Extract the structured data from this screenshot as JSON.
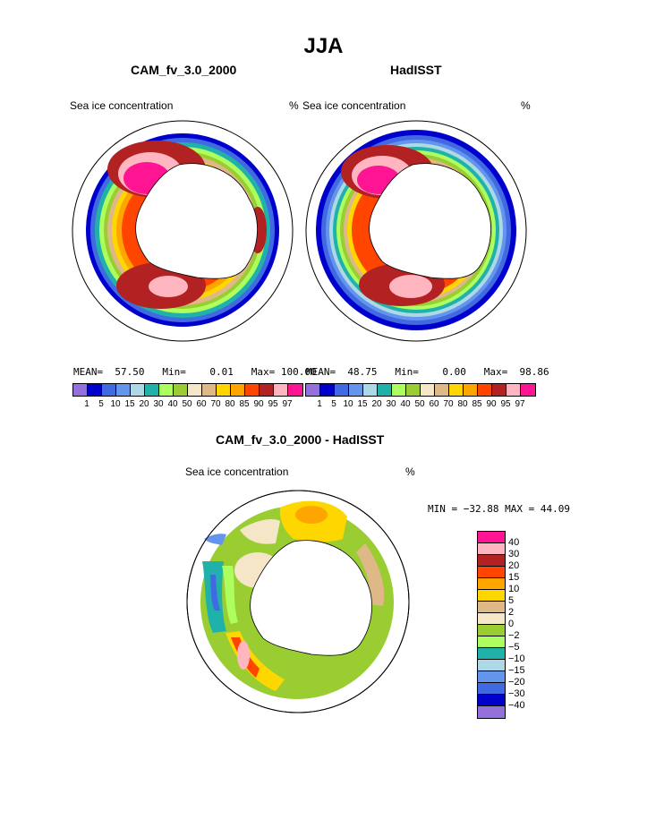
{
  "title": "JJA",
  "panels": [
    {
      "title": "CAM_fv_3.0_2000",
      "left_label": "Sea ice concentration",
      "right_label": "%",
      "mean_label": "MEAN=",
      "mean": "57.50",
      "min_label": "Min=",
      "min": "0.01",
      "max_label": "Max=",
      "max": "100.00"
    },
    {
      "title": "HadISST",
      "left_label": "Sea ice concentration",
      "right_label": "%",
      "mean_label": "MEAN=",
      "mean": "48.75",
      "min_label": "Min=",
      "min": "0.00",
      "max_label": "Max=",
      "max": "98.86"
    }
  ],
  "diff_panel": {
    "title": "CAM_fv_3.0_2000 - HadISST",
    "left_label": "Sea ice concentration",
    "right_label": "%",
    "minmax_text": "MIN = −32.88 MAX =  44.09"
  },
  "chart_data": [
    {
      "type": "heatmap",
      "title": "CAM_fv_3.0_2000",
      "variable": "Sea ice concentration",
      "units": "%",
      "projection": "south polar stereographic",
      "levels": [
        1,
        5,
        10,
        15,
        20,
        30,
        40,
        50,
        60,
        70,
        80,
        85,
        90,
        95,
        97
      ],
      "tick_labels": [
        "1",
        "5",
        "10",
        "15",
        "20",
        "30",
        "40",
        "50",
        "60",
        "70",
        "80",
        "85",
        "90",
        "95",
        "97"
      ],
      "colors": [
        "#9370db",
        "#0000cd",
        "#4169e1",
        "#6495ed",
        "#add8e6",
        "#20b2aa",
        "#adff5f",
        "#9acd32",
        "#f5e6c8",
        "#deb887",
        "#ffd700",
        "#ffa500",
        "#ff4500",
        "#b22222",
        "#ffb6c1",
        "#ff1493"
      ],
      "stats": {
        "mean": 57.5,
        "min": 0.01,
        "max": 100.0
      }
    },
    {
      "type": "heatmap",
      "title": "HadISST",
      "variable": "Sea ice concentration",
      "units": "%",
      "projection": "south polar stereographic",
      "levels": [
        1,
        5,
        10,
        15,
        20,
        30,
        40,
        50,
        60,
        70,
        80,
        85,
        90,
        95,
        97
      ],
      "tick_labels": [
        "1",
        "5",
        "10",
        "15",
        "20",
        "30",
        "40",
        "50",
        "60",
        "70",
        "80",
        "85",
        "90",
        "95",
        "97"
      ],
      "colors": [
        "#9370db",
        "#0000cd",
        "#4169e1",
        "#6495ed",
        "#add8e6",
        "#20b2aa",
        "#adff5f",
        "#9acd32",
        "#f5e6c8",
        "#deb887",
        "#ffd700",
        "#ffa500",
        "#ff4500",
        "#b22222",
        "#ffb6c1",
        "#ff1493"
      ],
      "stats": {
        "mean": 48.75,
        "min": 0.0,
        "max": 98.86
      }
    },
    {
      "type": "heatmap",
      "title": "CAM_fv_3.0_2000 - HadISST",
      "variable": "Sea ice concentration",
      "units": "%",
      "projection": "south polar stereographic",
      "levels": [
        -40,
        -30,
        -20,
        -15,
        -10,
        -5,
        -2,
        0,
        2,
        5,
        10,
        15,
        20,
        30,
        40
      ],
      "tick_labels_top_to_bottom": [
        "40",
        "30",
        "20",
        "15",
        "10",
        "5",
        "2",
        "0",
        "−2",
        "−5",
        "−10",
        "−15",
        "−20",
        "−30",
        "−40"
      ],
      "colors_top_to_bottom": [
        "#ff1493",
        "#ffb6c1",
        "#b22222",
        "#ff4500",
        "#ffa500",
        "#ffd700",
        "#deb887",
        "#f5e6c8",
        "#9acd32",
        "#adff5f",
        "#20b2aa",
        "#add8e6",
        "#6495ed",
        "#4169e1",
        "#0000cd",
        "#9370db"
      ],
      "stats": {
        "min": -32.88,
        "max": 44.09
      }
    }
  ]
}
